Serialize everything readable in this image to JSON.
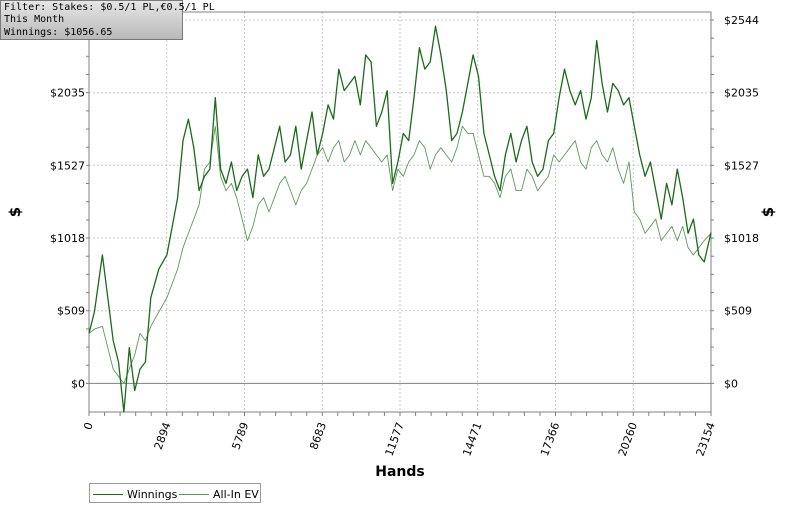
{
  "filter_box": {
    "line1": "Filter: Stakes: $0.5/1 PL,€0.5/1 PL",
    "line2": "This Month",
    "line3": "Winnings: $1056.65"
  },
  "colors": {
    "winnings": "#1a6b1a",
    "all_in_ev": "#5a9a5a",
    "grid": "#c8c8c8",
    "axis": "#808080"
  },
  "chart_data": {
    "type": "line",
    "xlabel": "Hands",
    "ylabel_left": "$",
    "ylabel_right": "$",
    "xlim": [
      0,
      23154
    ],
    "ylim": [
      -200,
      2600
    ],
    "x_ticks": [
      "0",
      "2894",
      "5789",
      "8683",
      "11577",
      "14471",
      "17366",
      "20260",
      "23154"
    ],
    "x_tick_values": [
      0,
      2894,
      5789,
      8683,
      11577,
      14471,
      17366,
      20260,
      23154
    ],
    "y_ticks": [
      "$0",
      "$509",
      "$1018",
      "$1527",
      "$2035",
      "$2544"
    ],
    "y_tick_values": [
      0,
      509,
      1018,
      1527,
      2035,
      2544
    ],
    "grid": true,
    "legend_position": "bottom-left",
    "series": [
      {
        "name": "Winnings",
        "x": [
          0,
          200,
          500,
          700,
          900,
          1100,
          1300,
          1500,
          1700,
          1900,
          2100,
          2300,
          2600,
          2900,
          3100,
          3300,
          3500,
          3700,
          3900,
          4100,
          4300,
          4500,
          4700,
          4900,
          5100,
          5300,
          5500,
          5700,
          5900,
          6100,
          6300,
          6500,
          6700,
          6900,
          7100,
          7300,
          7500,
          7700,
          7900,
          8100,
          8300,
          8500,
          8700,
          8900,
          9100,
          9300,
          9500,
          9700,
          9900,
          10100,
          10300,
          10500,
          10700,
          10900,
          11100,
          11300,
          11500,
          11700,
          11900,
          12100,
          12300,
          12500,
          12700,
          12900,
          13100,
          13300,
          13500,
          13700,
          13900,
          14100,
          14300,
          14500,
          14700,
          14900,
          15100,
          15300,
          15500,
          15700,
          15900,
          16100,
          16300,
          16500,
          16700,
          16900,
          17100,
          17300,
          17500,
          17700,
          17900,
          18100,
          18300,
          18500,
          18700,
          18900,
          19100,
          19300,
          19500,
          19700,
          19900,
          20100,
          20300,
          20500,
          20700,
          20900,
          21100,
          21300,
          21500,
          21700,
          21900,
          22100,
          22300,
          22500,
          22700,
          22900,
          23154
        ],
        "values": [
          350,
          500,
          900,
          600,
          300,
          150,
          -200,
          250,
          -50,
          100,
          150,
          600,
          800,
          900,
          1100,
          1300,
          1700,
          1850,
          1650,
          1350,
          1450,
          1500,
          2000,
          1500,
          1400,
          1550,
          1350,
          1450,
          1500,
          1300,
          1600,
          1450,
          1500,
          1650,
          1800,
          1550,
          1600,
          1800,
          1500,
          1700,
          1900,
          1600,
          1750,
          1950,
          1850,
          2200,
          2050,
          2100,
          2150,
          1950,
          2300,
          2250,
          1800,
          1900,
          2050,
          1400,
          1550,
          1750,
          1700,
          2000,
          2350,
          2200,
          2250,
          2500,
          2300,
          2050,
          1700,
          1750,
          1900,
          2100,
          2300,
          2150,
          1750,
          1600,
          1450,
          1350,
          1600,
          1750,
          1550,
          1700,
          1800,
          1550,
          1450,
          1500,
          1700,
          1750,
          2000,
          2200,
          2050,
          1950,
          2050,
          1850,
          2000,
          2400,
          2100,
          1900,
          2100,
          2050,
          1950,
          2000,
          1800,
          1600,
          1450,
          1550,
          1350,
          1150,
          1400,
          1250,
          1500,
          1300,
          1050,
          1150,
          900,
          850,
          1056.65
        ]
      },
      {
        "name": "All-In EV",
        "x": [
          0,
          200,
          500,
          700,
          900,
          1100,
          1300,
          1500,
          1700,
          1900,
          2100,
          2300,
          2600,
          2900,
          3100,
          3300,
          3500,
          3700,
          3900,
          4100,
          4300,
          4500,
          4700,
          4900,
          5100,
          5300,
          5500,
          5700,
          5900,
          6100,
          6300,
          6500,
          6700,
          6900,
          7100,
          7300,
          7500,
          7700,
          7900,
          8100,
          8300,
          8500,
          8700,
          8900,
          9100,
          9300,
          9500,
          9700,
          9900,
          10100,
          10300,
          10500,
          10700,
          10900,
          11100,
          11300,
          11500,
          11700,
          11900,
          12100,
          12300,
          12500,
          12700,
          12900,
          13100,
          13300,
          13500,
          13700,
          13900,
          14100,
          14300,
          14500,
          14700,
          14900,
          15100,
          15300,
          15500,
          15700,
          15900,
          16100,
          16300,
          16500,
          16700,
          16900,
          17100,
          17300,
          17500,
          17700,
          17900,
          18100,
          18300,
          18500,
          18700,
          18900,
          19100,
          19300,
          19500,
          19700,
          19900,
          20100,
          20300,
          20500,
          20700,
          20900,
          21100,
          21300,
          21500,
          21700,
          21900,
          22100,
          22300,
          22500,
          22700,
          22900,
          23154
        ],
        "values": [
          350,
          380,
          400,
          250,
          100,
          50,
          0,
          100,
          200,
          350,
          300,
          400,
          500,
          600,
          700,
          800,
          950,
          1050,
          1150,
          1250,
          1500,
          1550,
          1800,
          1450,
          1350,
          1400,
          1300,
          1150,
          1000,
          1100,
          1250,
          1300,
          1200,
          1300,
          1400,
          1450,
          1350,
          1250,
          1350,
          1400,
          1500,
          1600,
          1650,
          1550,
          1650,
          1700,
          1550,
          1600,
          1700,
          1600,
          1700,
          1650,
          1600,
          1550,
          1600,
          1350,
          1500,
          1450,
          1550,
          1600,
          1700,
          1650,
          1500,
          1600,
          1650,
          1600,
          1550,
          1650,
          1800,
          1750,
          1750,
          1600,
          1450,
          1450,
          1400,
          1300,
          1450,
          1500,
          1350,
          1350,
          1500,
          1450,
          1350,
          1400,
          1450,
          1600,
          1550,
          1600,
          1650,
          1700,
          1550,
          1500,
          1650,
          1700,
          1600,
          1550,
          1650,
          1500,
          1400,
          1550,
          1200,
          1150,
          1050,
          1100,
          1150,
          1000,
          1050,
          1100,
          1000,
          1100,
          950,
          900,
          950,
          1000,
          1050
        ]
      }
    ]
  }
}
